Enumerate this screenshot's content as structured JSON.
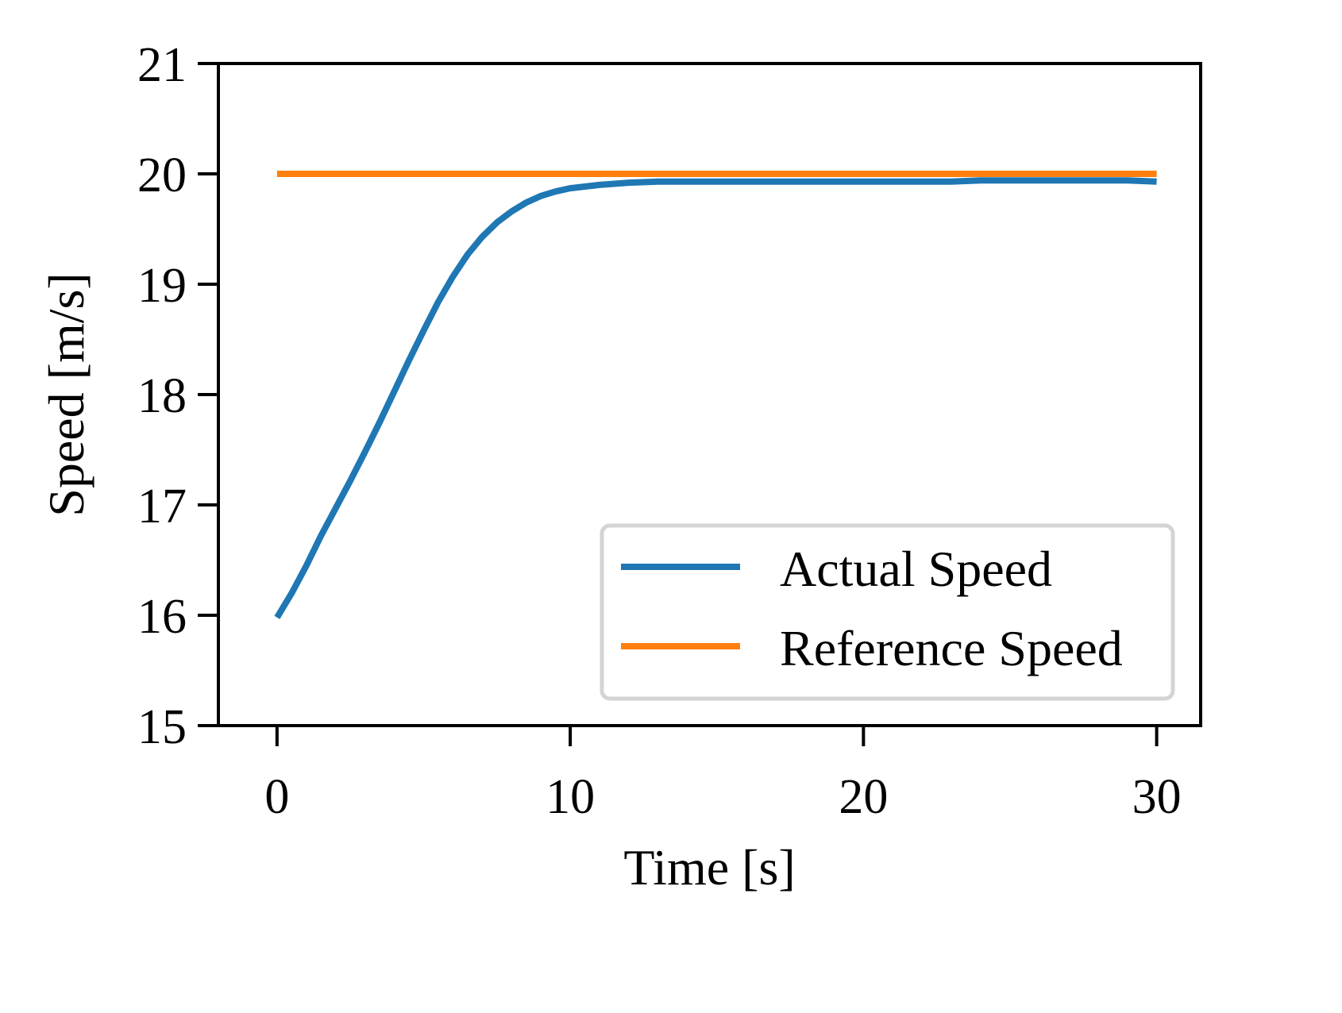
{
  "chart_data": {
    "type": "line",
    "title": "",
    "xlabel": "Time [s]",
    "ylabel": "Speed [m/s]",
    "xlim": [
      -2.0,
      31.5
    ],
    "ylim": [
      15,
      21
    ],
    "xticks": [
      0,
      10,
      20,
      30
    ],
    "yticks": [
      15,
      16,
      17,
      18,
      19,
      20,
      21
    ],
    "xtick_labels": [
      "0",
      "10",
      "20",
      "30"
    ],
    "ytick_labels": [
      "15",
      "16",
      "17",
      "18",
      "19",
      "20",
      "21"
    ],
    "grid": false,
    "legend_position": "lower right",
    "series": [
      {
        "name": "Actual Speed",
        "color": "#1f77b4",
        "x": [
          0,
          0.5,
          1,
          1.5,
          2,
          2.5,
          3,
          3.5,
          4,
          4.5,
          5,
          5.5,
          6,
          6.5,
          7,
          7.5,
          8,
          8.5,
          9,
          9.5,
          10,
          11,
          12,
          13,
          14,
          15,
          16,
          17,
          18,
          19,
          20,
          21,
          22,
          23,
          24,
          25,
          26,
          27,
          28,
          29,
          30
        ],
        "y": [
          15.98,
          16.2,
          16.45,
          16.72,
          16.97,
          17.22,
          17.48,
          17.75,
          18.03,
          18.31,
          18.58,
          18.84,
          19.07,
          19.27,
          19.43,
          19.56,
          19.66,
          19.74,
          19.8,
          19.84,
          19.87,
          19.9,
          19.92,
          19.93,
          19.93,
          19.93,
          19.93,
          19.93,
          19.93,
          19.93,
          19.93,
          19.93,
          19.93,
          19.93,
          19.94,
          19.94,
          19.94,
          19.94,
          19.94,
          19.94,
          19.93
        ]
      },
      {
        "name": "Reference Speed",
        "color": "#ff7f0e",
        "x": [
          0,
          30
        ],
        "y": [
          20,
          20
        ]
      }
    ]
  }
}
